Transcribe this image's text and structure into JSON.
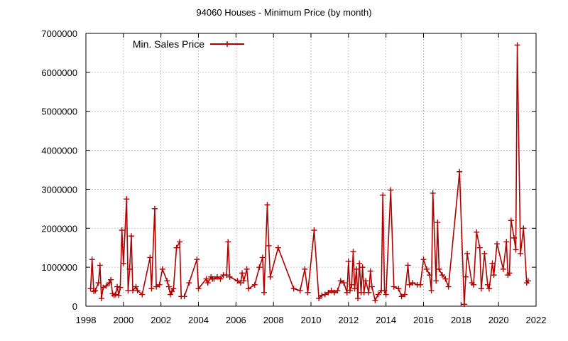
{
  "chart_data": {
    "type": "line",
    "title": "94060 Houses - Minimum Price (by month)",
    "xlabel": "",
    "ylabel": "",
    "xlim": [
      1998,
      2022
    ],
    "ylim": [
      0,
      7000000
    ],
    "x_ticks": [
      1998,
      2000,
      2002,
      2004,
      2006,
      2008,
      2010,
      2012,
      2014,
      2016,
      2018,
      2020,
      2022
    ],
    "x_tick_labels": [
      "1998",
      "2000",
      "2002",
      "2004",
      "2006",
      "2008",
      "2010",
      "2012",
      "2014",
      "2016",
      "2018",
      "2020",
      "2022"
    ],
    "y_ticks": [
      0,
      1000000,
      2000000,
      3000000,
      4000000,
      5000000,
      6000000,
      7000000
    ],
    "y_tick_labels": [
      "0",
      "1000000",
      "2000000",
      "3000000",
      "4000000",
      "5000000",
      "6000000",
      "7000000"
    ],
    "grid": true,
    "legend_position": "top-left",
    "series": [
      {
        "name": "Min. Sales Price",
        "color": "#b00000",
        "marker": "plus",
        "points": [
          [
            1998.25,
            450000
          ],
          [
            1998.33,
            1200000
          ],
          [
            1998.42,
            380000
          ],
          [
            1998.5,
            400000
          ],
          [
            1998.67,
            600000
          ],
          [
            1998.75,
            1050000
          ],
          [
            1998.83,
            200000
          ],
          [
            1998.92,
            480000
          ],
          [
            1999.08,
            520000
          ],
          [
            1999.25,
            600000
          ],
          [
            1999.33,
            680000
          ],
          [
            1999.42,
            320000
          ],
          [
            1999.5,
            280000
          ],
          [
            1999.58,
            300000
          ],
          [
            1999.67,
            500000
          ],
          [
            1999.75,
            280000
          ],
          [
            1999.83,
            480000
          ],
          [
            1999.92,
            1950000
          ],
          [
            2000.0,
            1100000
          ],
          [
            2000.17,
            2750000
          ],
          [
            2000.25,
            400000
          ],
          [
            2000.33,
            950000
          ],
          [
            2000.42,
            1800000
          ],
          [
            2000.5,
            400000
          ],
          [
            2000.67,
            500000
          ],
          [
            2000.75,
            400000
          ],
          [
            2001.0,
            300000
          ],
          [
            2001.42,
            1250000
          ],
          [
            2001.5,
            450000
          ],
          [
            2001.67,
            2500000
          ],
          [
            2001.75,
            500000
          ],
          [
            2001.92,
            550000
          ],
          [
            2002.08,
            950000
          ],
          [
            2002.33,
            650000
          ],
          [
            2002.42,
            500000
          ],
          [
            2002.5,
            300000
          ],
          [
            2002.58,
            380000
          ],
          [
            2002.67,
            450000
          ],
          [
            2002.83,
            1500000
          ],
          [
            2003.0,
            1650000
          ],
          [
            2003.08,
            250000
          ],
          [
            2003.25,
            250000
          ],
          [
            2003.5,
            600000
          ],
          [
            2003.92,
            1200000
          ],
          [
            2004.0,
            450000
          ],
          [
            2004.42,
            700000
          ],
          [
            2004.5,
            600000
          ],
          [
            2004.67,
            750000
          ],
          [
            2004.75,
            700000
          ],
          [
            2004.83,
            700000
          ],
          [
            2005.0,
            750000
          ],
          [
            2005.17,
            700000
          ],
          [
            2005.33,
            800000
          ],
          [
            2005.5,
            800000
          ],
          [
            2005.58,
            1650000
          ],
          [
            2005.67,
            750000
          ],
          [
            2006.08,
            650000
          ],
          [
            2006.25,
            600000
          ],
          [
            2006.33,
            850000
          ],
          [
            2006.42,
            650000
          ],
          [
            2006.58,
            950000
          ],
          [
            2006.67,
            450000
          ],
          [
            2007.0,
            550000
          ],
          [
            2007.25,
            1000000
          ],
          [
            2007.42,
            1250000
          ],
          [
            2007.5,
            350000
          ],
          [
            2007.67,
            2600000
          ],
          [
            2007.75,
            1550000
          ],
          [
            2007.83,
            750000
          ],
          [
            2008.25,
            1500000
          ],
          [
            2009.08,
            450000
          ],
          [
            2009.42,
            400000
          ],
          [
            2009.67,
            950000
          ],
          [
            2009.83,
            350000
          ],
          [
            2010.17,
            1950000
          ],
          [
            2010.42,
            200000
          ],
          [
            2010.58,
            280000
          ],
          [
            2010.75,
            300000
          ],
          [
            2010.92,
            350000
          ],
          [
            2011.08,
            400000
          ],
          [
            2011.25,
            350000
          ],
          [
            2011.42,
            400000
          ],
          [
            2011.58,
            650000
          ],
          [
            2011.75,
            600000
          ],
          [
            2011.92,
            350000
          ],
          [
            2012.0,
            1150000
          ],
          [
            2012.08,
            400000
          ],
          [
            2012.17,
            550000
          ],
          [
            2012.25,
            1400000
          ],
          [
            2012.33,
            450000
          ],
          [
            2012.42,
            950000
          ],
          [
            2012.5,
            200000
          ],
          [
            2012.58,
            1100000
          ],
          [
            2012.67,
            350000
          ],
          [
            2012.75,
            1000000
          ],
          [
            2012.83,
            350000
          ],
          [
            2012.92,
            650000
          ],
          [
            2013.08,
            350000
          ],
          [
            2013.17,
            900000
          ],
          [
            2013.25,
            500000
          ],
          [
            2013.42,
            150000
          ],
          [
            2013.58,
            300000
          ],
          [
            2013.75,
            400000
          ],
          [
            2013.83,
            2850000
          ],
          [
            2013.92,
            400000
          ],
          [
            2014.0,
            300000
          ],
          [
            2014.25,
            2980000
          ],
          [
            2014.42,
            500000
          ],
          [
            2014.67,
            450000
          ],
          [
            2014.83,
            250000
          ],
          [
            2015.0,
            300000
          ],
          [
            2015.17,
            1050000
          ],
          [
            2015.25,
            550000
          ],
          [
            2015.42,
            600000
          ],
          [
            2015.67,
            550000
          ],
          [
            2015.83,
            550000
          ],
          [
            2016.0,
            1200000
          ],
          [
            2016.17,
            950000
          ],
          [
            2016.33,
            800000
          ],
          [
            2016.42,
            400000
          ],
          [
            2016.5,
            2900000
          ],
          [
            2016.67,
            650000
          ],
          [
            2016.75,
            2150000
          ],
          [
            2016.83,
            950000
          ],
          [
            2017.0,
            800000
          ],
          [
            2017.17,
            700000
          ],
          [
            2017.33,
            500000
          ],
          [
            2017.92,
            3450000
          ],
          [
            2018.17,
            50000
          ],
          [
            2018.25,
            750000
          ],
          [
            2018.33,
            1350000
          ],
          [
            2018.58,
            600000
          ],
          [
            2018.67,
            550000
          ],
          [
            2018.83,
            1900000
          ],
          [
            2019.0,
            1500000
          ],
          [
            2019.08,
            450000
          ],
          [
            2019.25,
            1350000
          ],
          [
            2019.42,
            550000
          ],
          [
            2019.5,
            450000
          ],
          [
            2019.67,
            1100000
          ],
          [
            2019.75,
            800000
          ],
          [
            2019.92,
            1600000
          ],
          [
            2020.25,
            950000
          ],
          [
            2020.42,
            1650000
          ],
          [
            2020.5,
            800000
          ],
          [
            2020.58,
            850000
          ],
          [
            2020.67,
            2200000
          ],
          [
            2020.83,
            1750000
          ],
          [
            2020.92,
            1450000
          ],
          [
            2021.0,
            6700000
          ],
          [
            2021.17,
            1350000
          ],
          [
            2021.33,
            2000000
          ],
          [
            2021.5,
            600000
          ],
          [
            2021.58,
            650000
          ]
        ]
      }
    ]
  }
}
